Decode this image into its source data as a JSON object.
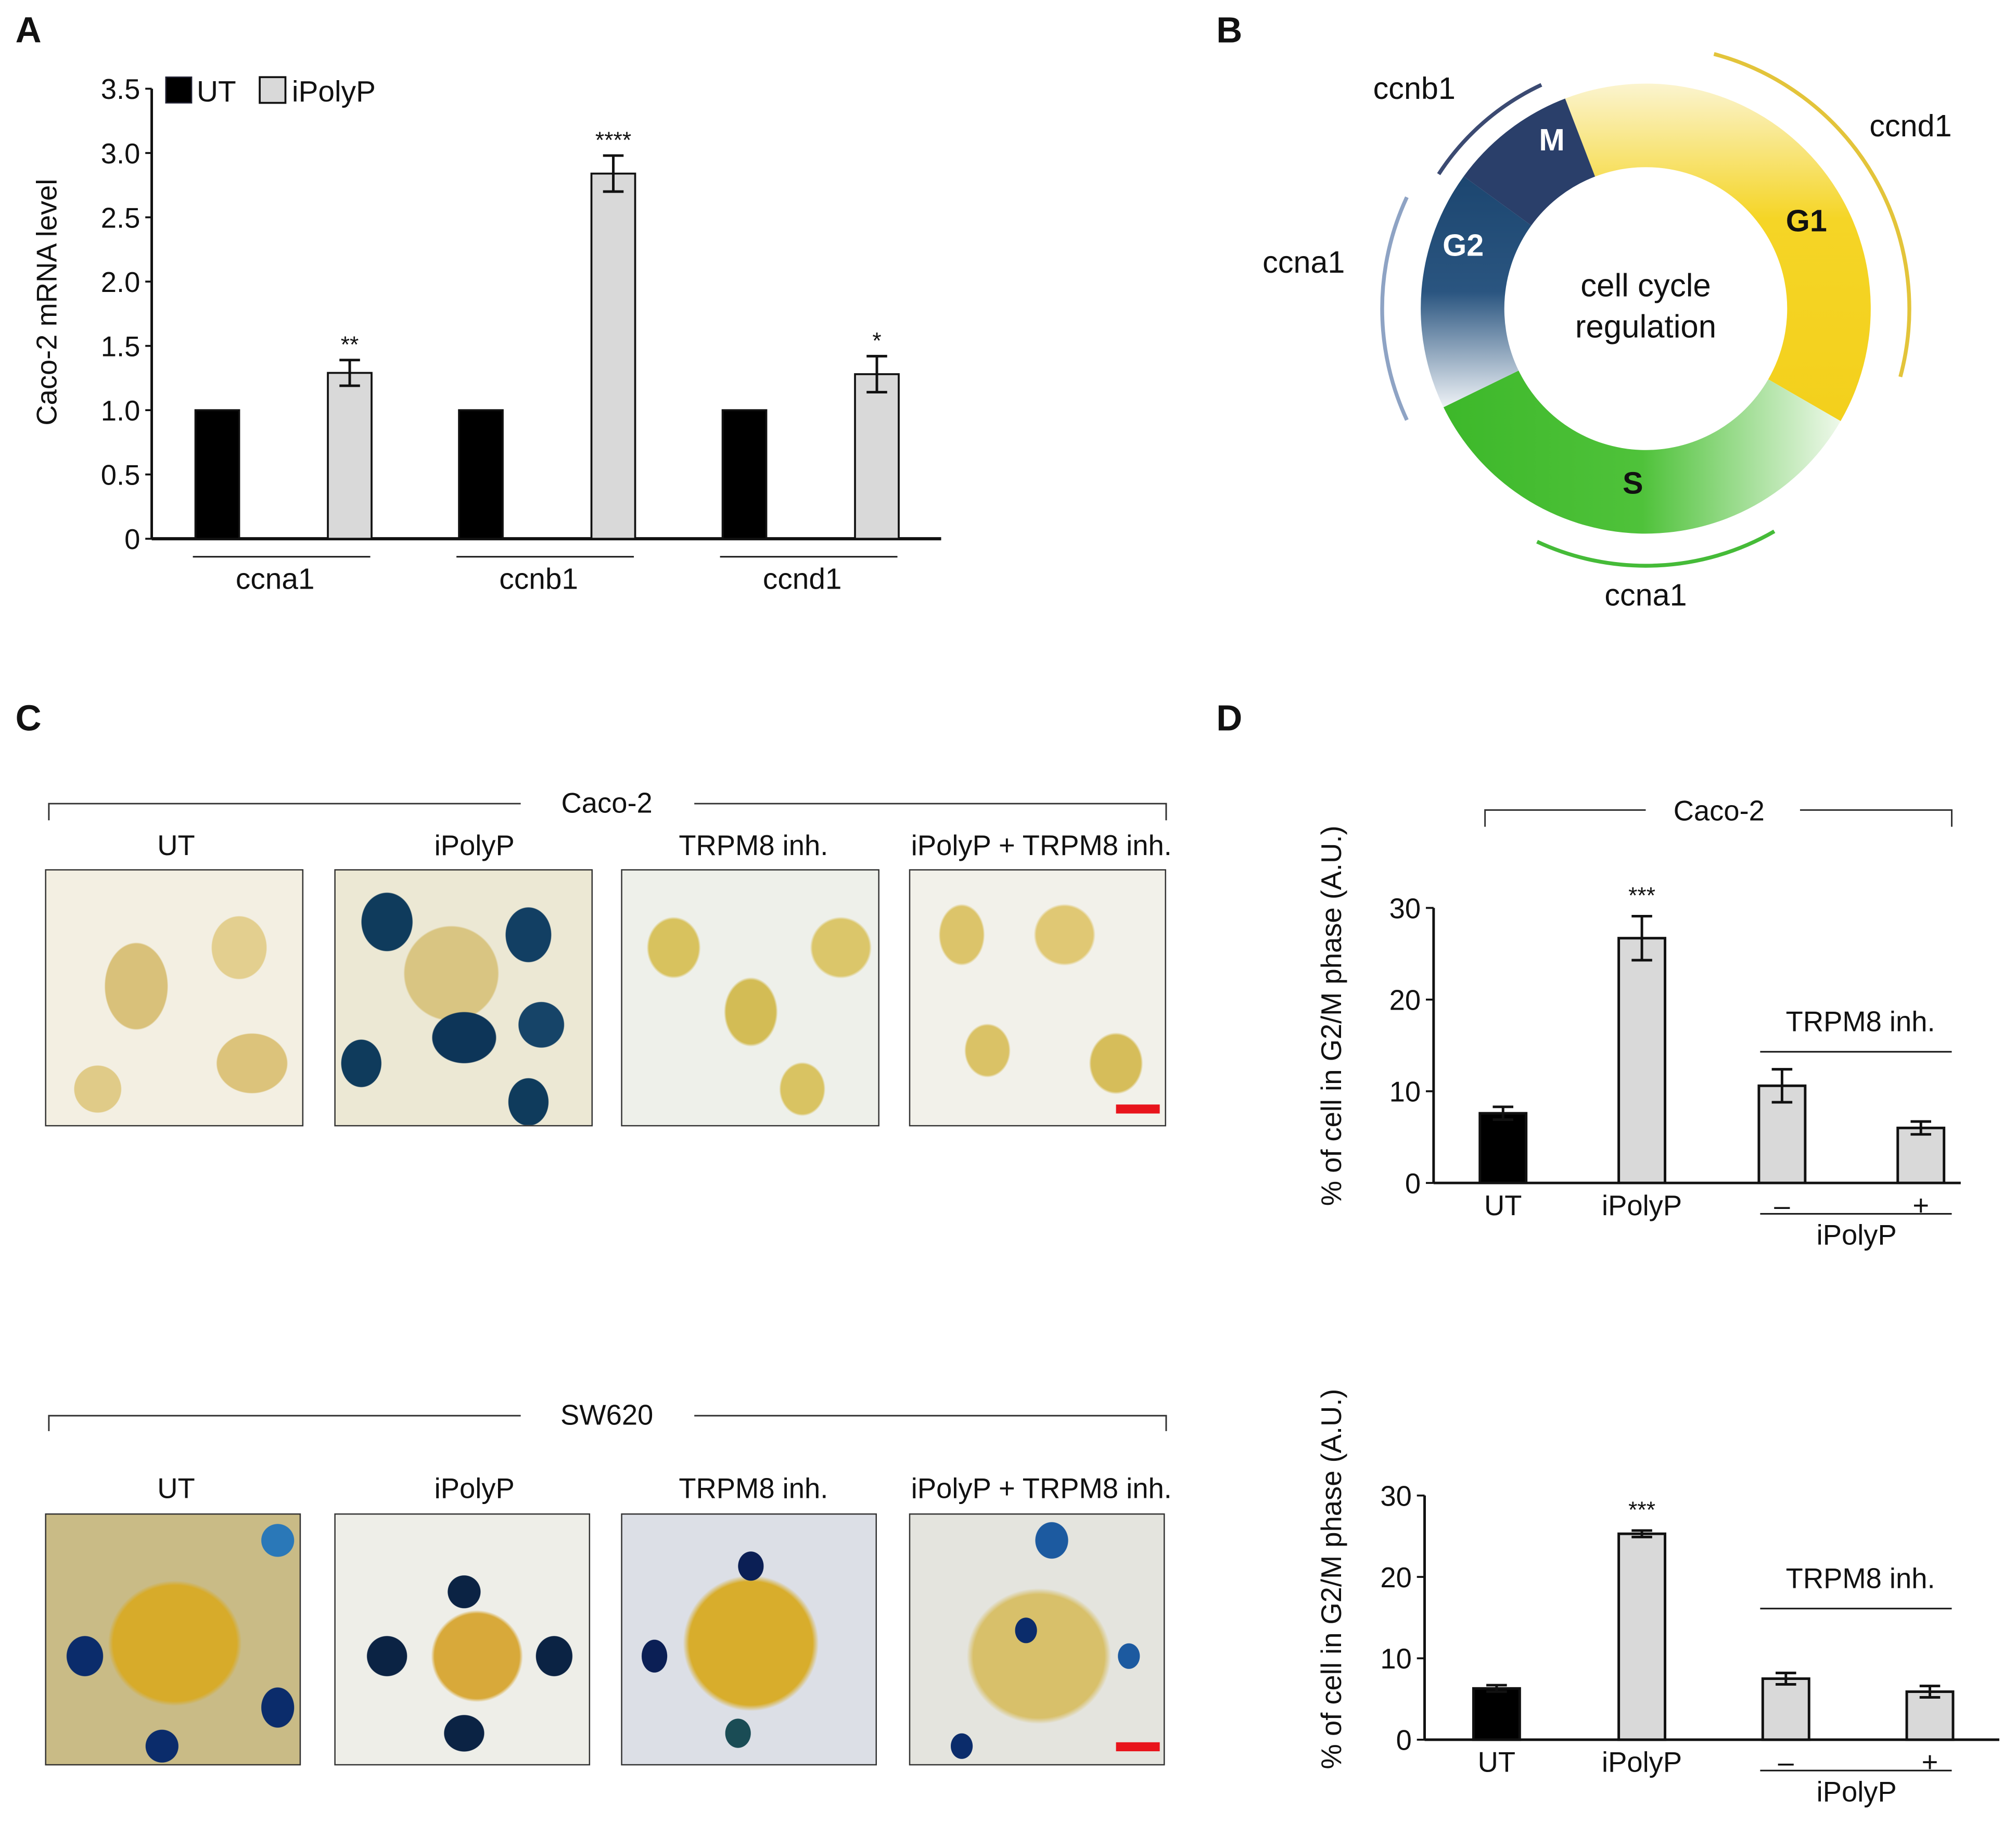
{
  "panels": {
    "a": "A",
    "b": "B",
    "c": "C",
    "d": "D"
  },
  "colors": {
    "ut": "#000000",
    "ipolyp": "#d9d9d9",
    "scale_bar": "#e8141b",
    "g1": "#f5d21f",
    "s": "#3dbb2c",
    "g2": "#1c4670",
    "m": "#2a3f6a"
  },
  "chart_data": [
    {
      "id": "A",
      "type": "bar",
      "ylabel": "Caco-2 mRNA level",
      "ylim": [
        0,
        3.5
      ],
      "yticks": [
        "0",
        "0.5",
        "1.0",
        "1.5",
        "2.0",
        "2.5",
        "3.0",
        "3.5"
      ],
      "categories": [
        "ccna1",
        "ccnb1",
        "ccnd1"
      ],
      "legend": [
        "UT",
        "iPolyP"
      ],
      "legend_position": "top-left",
      "series": [
        {
          "name": "UT",
          "values": [
            1.0,
            1.0,
            1.0
          ],
          "errors": [
            0,
            0,
            0
          ]
        },
        {
          "name": "iPolyP",
          "values": [
            1.29,
            2.84,
            1.28
          ],
          "errors": [
            0.1,
            0.14,
            0.14
          ],
          "significance": [
            "**",
            "****",
            "*"
          ]
        }
      ]
    },
    {
      "id": "D-top",
      "type": "bar",
      "title": "Caco-2",
      "ylabel": "% of cell in G2/M phase (A.U.)",
      "ylim": [
        0,
        30
      ],
      "yticks": [
        "0",
        "10",
        "20",
        "30"
      ],
      "categories": [
        "UT",
        "iPolyP",
        "–",
        "+"
      ],
      "group_top_label": "TRPM8 inh.",
      "group_bottom_label": "iPolyP",
      "values": [
        7.6,
        26.7,
        10.6,
        6.0
      ],
      "errors": [
        0.7,
        2.4,
        1.8,
        0.7
      ],
      "significance": [
        "",
        "***",
        "",
        ""
      ]
    },
    {
      "id": "D-bottom",
      "type": "bar",
      "ylabel": "% of cell in G2/M phase (A.U.)",
      "ylim": [
        0,
        30
      ],
      "yticks": [
        "0",
        "10",
        "20",
        "30"
      ],
      "categories": [
        "UT",
        "iPolyP",
        "–",
        "+"
      ],
      "group_top_label": "TRPM8 inh.",
      "group_bottom_label": "iPolyP",
      "values": [
        6.3,
        25.3,
        7.5,
        5.9
      ],
      "errors": [
        0.4,
        0.4,
        0.7,
        0.7
      ],
      "significance": [
        "",
        "***",
        "",
        ""
      ]
    }
  ],
  "cycle": {
    "center": [
      "cell cycle",
      "regulation"
    ],
    "phases": {
      "m": "M",
      "g1": "G1",
      "s": "S",
      "g2": "G2"
    },
    "genes": {
      "ccnb1": "ccnb1",
      "ccnd1": "ccnd1",
      "ccna1_left": "ccna1",
      "ccna1_bottom": "ccna1"
    }
  },
  "micrographs": {
    "caco2": {
      "title": "Caco-2",
      "columns": [
        "UT",
        "iPolyP",
        "TRPM8 inh.",
        "iPolyP + TRPM8 inh."
      ]
    },
    "sw620": {
      "title": "SW620",
      "columns": [
        "UT",
        "iPolyP",
        "TRPM8 inh.",
        "iPolyP + TRPM8 inh."
      ]
    }
  }
}
